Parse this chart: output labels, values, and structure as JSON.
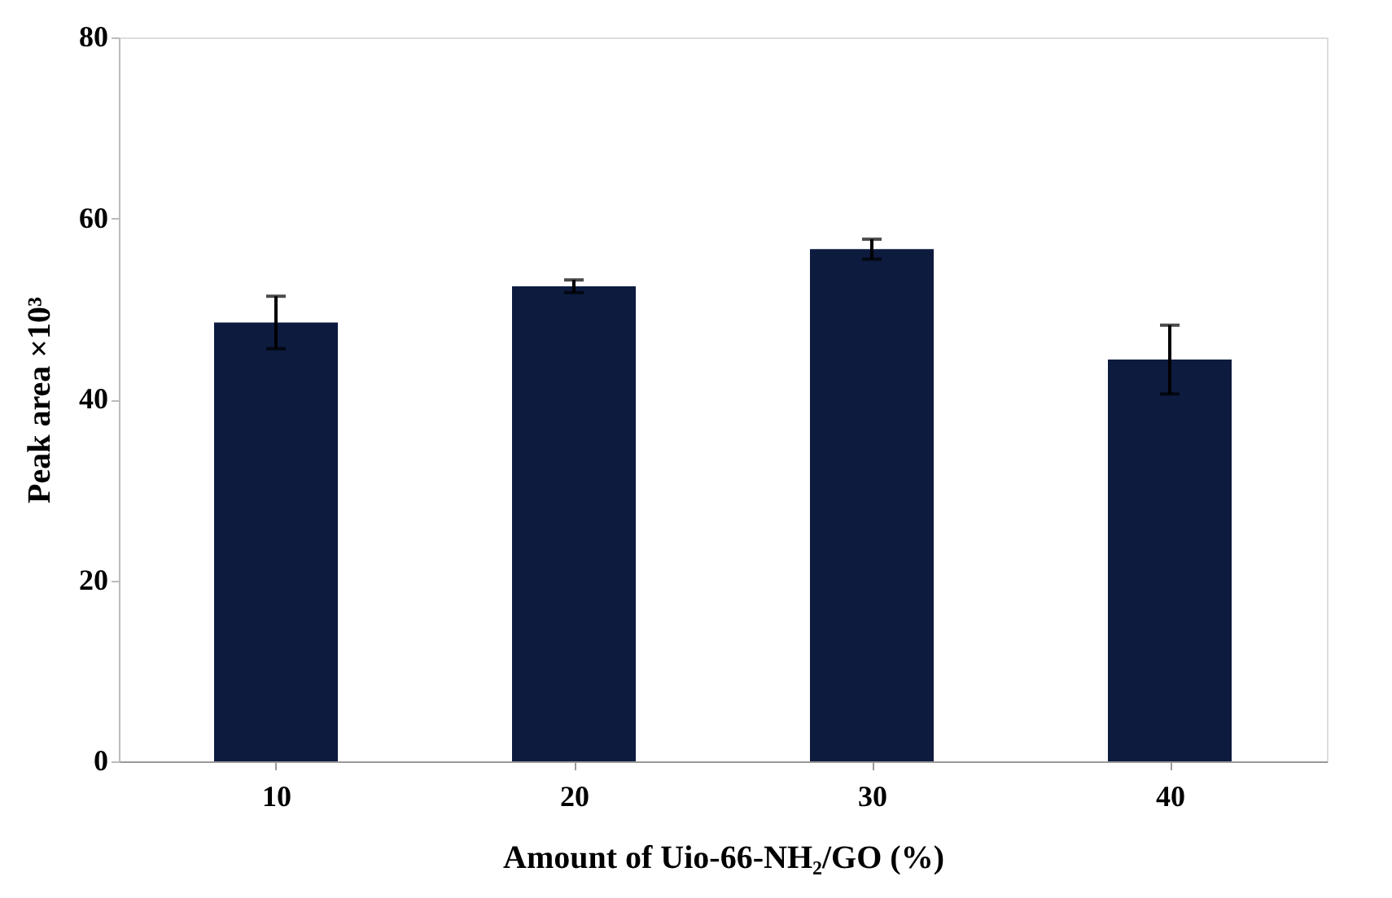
{
  "chart_data": {
    "type": "bar",
    "categories": [
      "10",
      "20",
      "30",
      "40"
    ],
    "values": [
      48.5,
      52.5,
      56.6,
      44.4
    ],
    "errors": [
      2.9,
      0.7,
      1.1,
      3.8
    ],
    "color": "#0d1b3f",
    "xlabel": "Amount of Uio-66-NH₂/GO (%)",
    "ylabel": "Peak area ×10³",
    "ylim": [
      0,
      80
    ],
    "yticks": [
      0,
      20,
      40,
      60,
      80
    ],
    "grid": false
  }
}
